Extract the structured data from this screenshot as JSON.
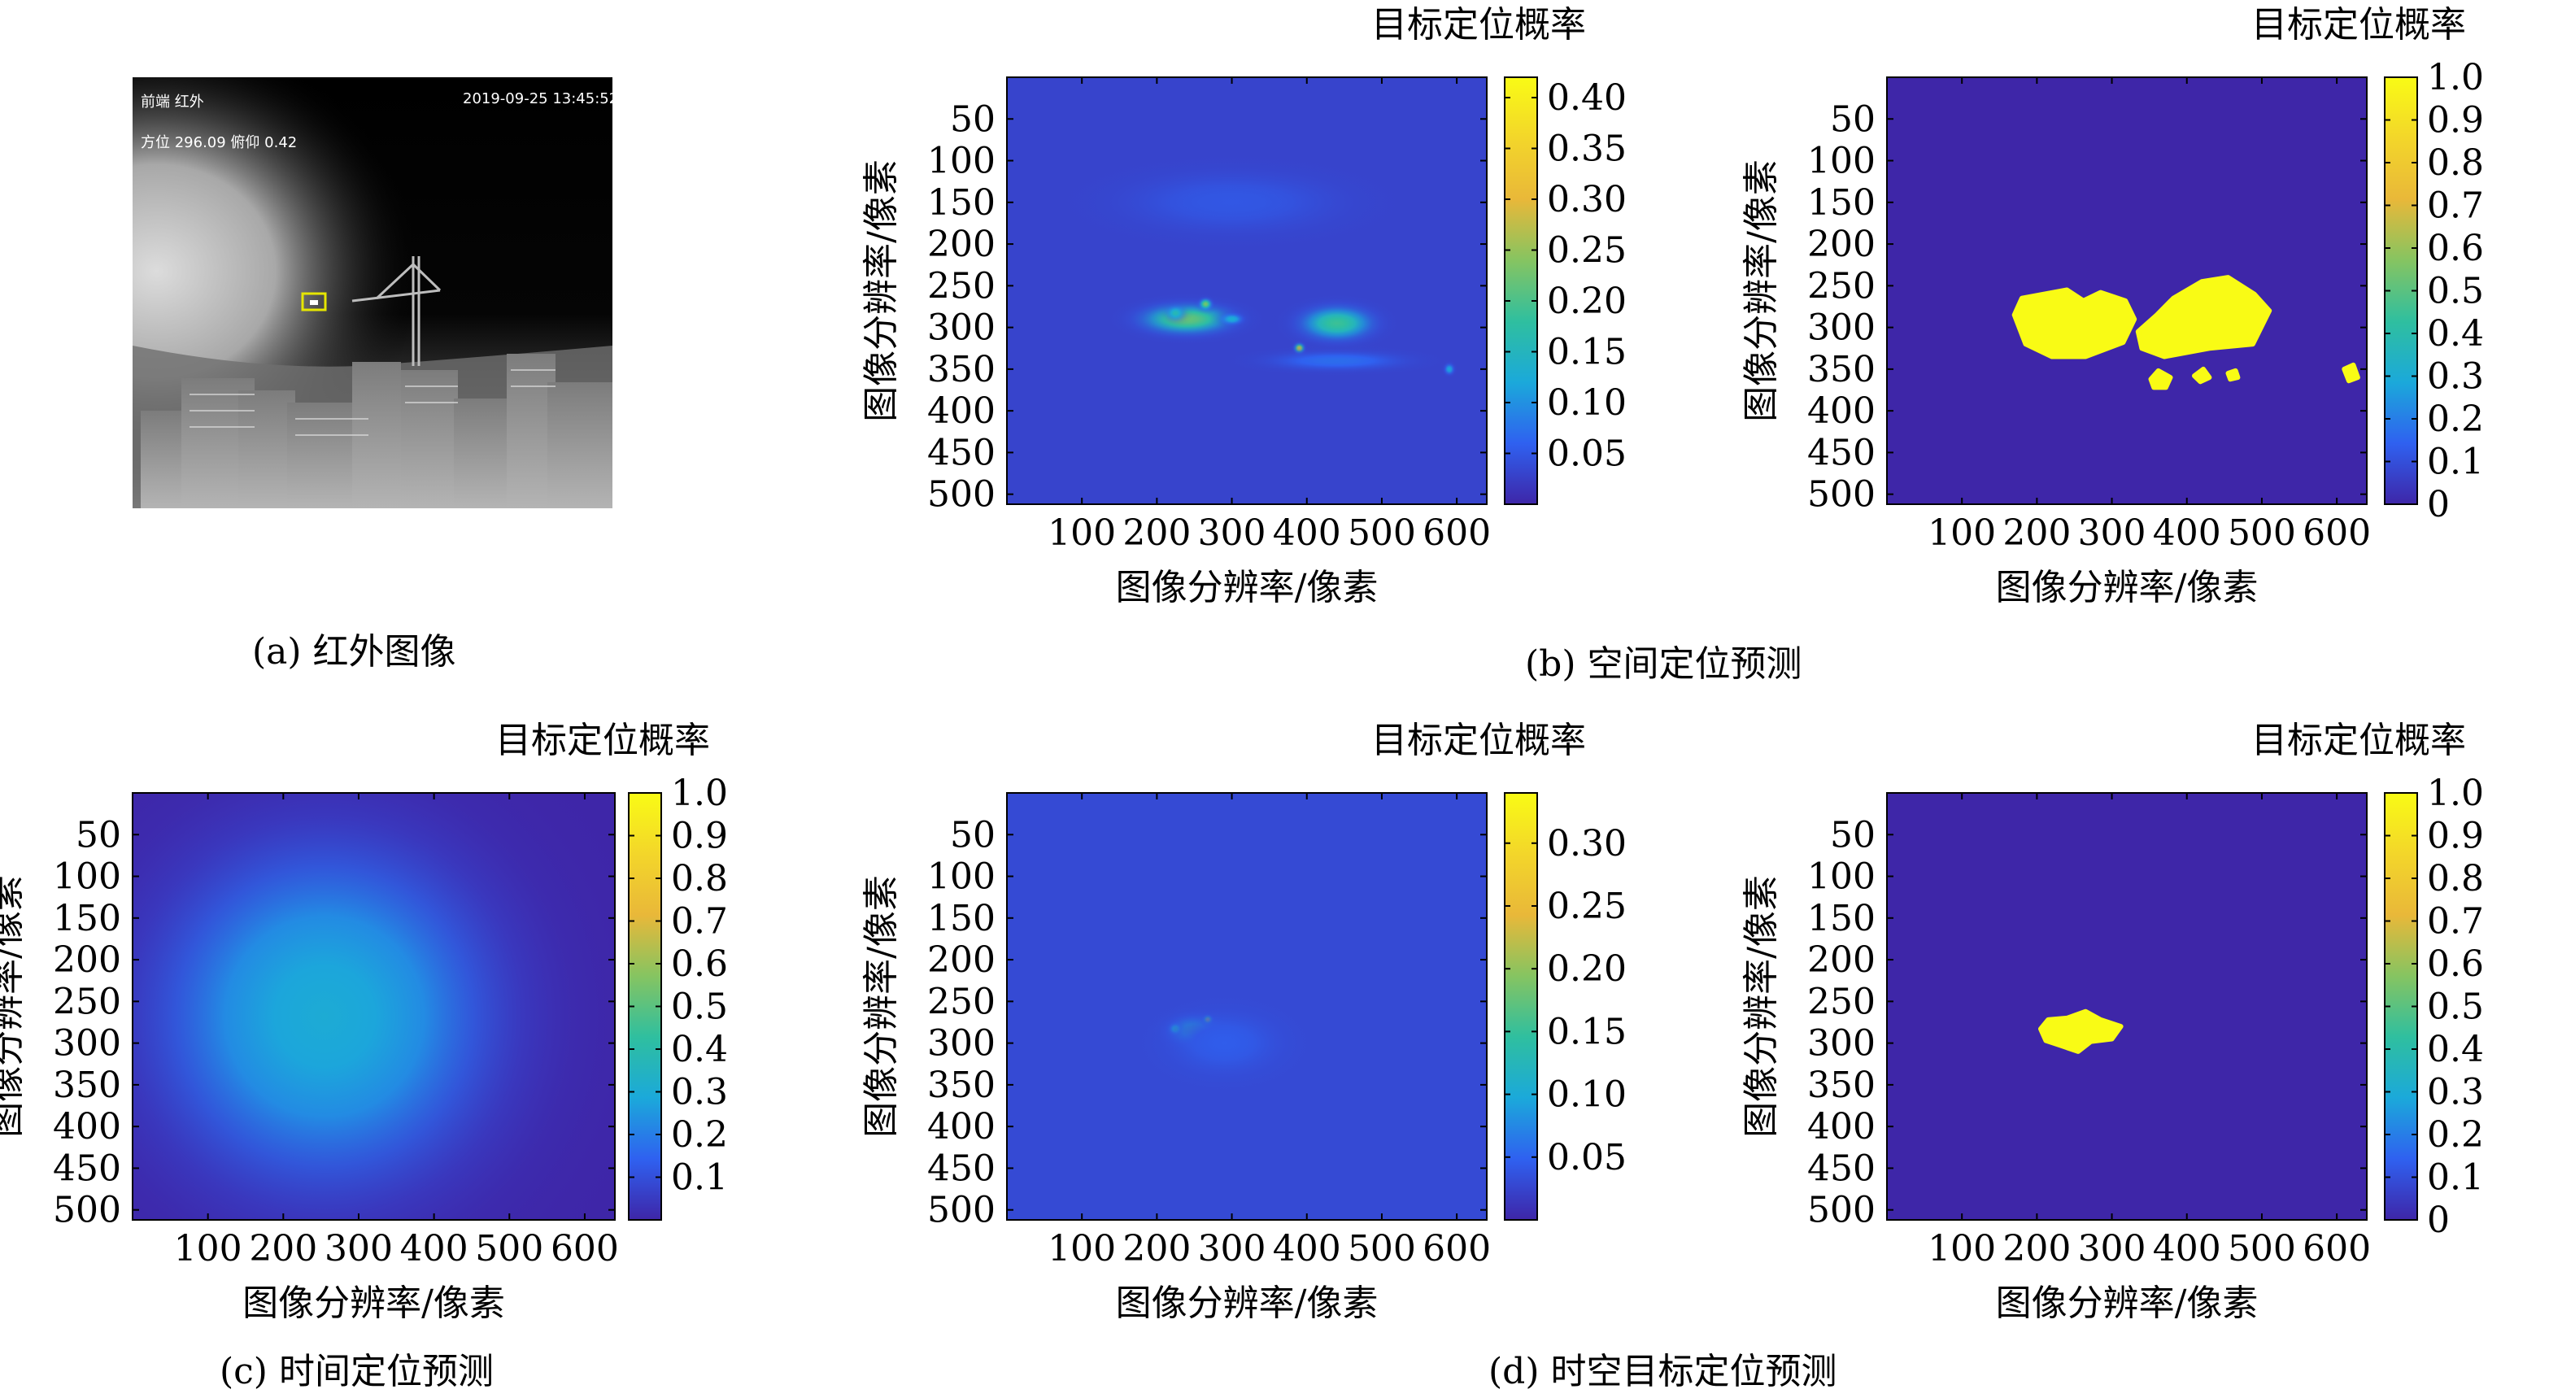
{
  "captions": {
    "a": "(a) 红外图像",
    "b": "(b) 空间定位预测",
    "c": "(c) 时间定位预测",
    "d": "(d) 时空目标定位预测"
  },
  "ir_image": {
    "top_left_label": "前端  红外",
    "timestamp": "2019-09-25  13:45:52",
    "orientation": "方位 296.09  俯仰 0.42",
    "box_color": "#e6e600"
  },
  "colormap": [
    "#3e26a8",
    "#2f61f0",
    "#1ba9da",
    "#2fbf9f",
    "#86c461",
    "#e9b839",
    "#f3d62a",
    "#f9fb15"
  ],
  "chart_data": [
    {
      "id": "b_spatial_probability",
      "type": "heatmap",
      "xlabel": "图像分辨率/像素",
      "ylabel": "图像分辨率/像素",
      "colorbar_label": "目标定位概率",
      "xticks": [
        100,
        200,
        300,
        400,
        500,
        600
      ],
      "yticks": [
        50,
        100,
        150,
        200,
        250,
        300,
        350,
        400,
        450,
        500
      ],
      "xlim": [
        0,
        640
      ],
      "ylim": [
        0,
        512
      ],
      "clim": [
        0,
        0.42
      ],
      "cticks": [
        0.05,
        0.1,
        0.15,
        0.2,
        0.25,
        0.3,
        0.35,
        0.4
      ],
      "ctick_labels": [
        "0.05",
        "0.10",
        "0.15",
        "0.20",
        "0.25",
        "0.30",
        "0.35",
        "0.40"
      ],
      "background": 0.03,
      "blobs": [
        {
          "x": 240,
          "y": 290,
          "sx": 75,
          "sy": 22,
          "v": 0.19
        },
        {
          "x": 440,
          "y": 295,
          "sx": 60,
          "sy": 25,
          "v": 0.16
        },
        {
          "x": 225,
          "y": 283,
          "sx": 14,
          "sy": 10,
          "v": 0.13
        },
        {
          "x": 265,
          "y": 272,
          "sx": 10,
          "sy": 8,
          "v": 0.2
        },
        {
          "x": 300,
          "y": 290,
          "sx": 18,
          "sy": 8,
          "v": 0.1
        },
        {
          "x": 390,
          "y": 325,
          "sx": 8,
          "sy": 7,
          "v": 0.26
        },
        {
          "x": 590,
          "y": 350,
          "sx": 8,
          "sy": 8,
          "v": 0.09
        },
        {
          "x": 440,
          "y": 340,
          "sx": 120,
          "sy": 15,
          "v": 0.04
        },
        {
          "x": 300,
          "y": 150,
          "sx": 200,
          "sy": 50,
          "v": 0.02
        }
      ]
    },
    {
      "id": "b_spatial_mask",
      "type": "heatmap",
      "xlabel": "图像分辨率/像素",
      "ylabel": "图像分辨率/像素",
      "colorbar_label": "目标定位概率",
      "xticks": [
        100,
        200,
        300,
        400,
        500,
        600
      ],
      "yticks": [
        50,
        100,
        150,
        200,
        250,
        300,
        350,
        400,
        450,
        500
      ],
      "xlim": [
        0,
        640
      ],
      "ylim": [
        0,
        512
      ],
      "clim": [
        0,
        1
      ],
      "cticks": [
        0,
        0.1,
        0.2,
        0.3,
        0.4,
        0.5,
        0.6,
        0.7,
        0.8,
        0.9,
        1.0
      ],
      "ctick_labels": [
        "0",
        "0.1",
        "0.2",
        "0.3",
        "0.4",
        "0.5",
        "0.6",
        "0.7",
        "0.8",
        "0.9",
        "1.0"
      ],
      "mask_regions": [
        [
          [
            170,
            285
          ],
          [
            180,
            265
          ],
          [
            210,
            260
          ],
          [
            240,
            255
          ],
          [
            262,
            268
          ],
          [
            285,
            258
          ],
          [
            318,
            268
          ],
          [
            330,
            290
          ],
          [
            315,
            318
          ],
          [
            265,
            335
          ],
          [
            220,
            335
          ],
          [
            185,
            320
          ]
        ],
        [
          [
            335,
            305
          ],
          [
            360,
            285
          ],
          [
            382,
            265
          ],
          [
            420,
            245
          ],
          [
            455,
            240
          ],
          [
            490,
            260
          ],
          [
            510,
            280
          ],
          [
            488,
            320
          ],
          [
            430,
            325
          ],
          [
            370,
            335
          ],
          [
            340,
            325
          ]
        ],
        [
          [
            352,
            362
          ],
          [
            362,
            352
          ],
          [
            378,
            360
          ],
          [
            372,
            372
          ],
          [
            356,
            372
          ]
        ],
        [
          [
            410,
            358
          ],
          [
            422,
            350
          ],
          [
            430,
            360
          ],
          [
            418,
            365
          ]
        ],
        [
          [
            455,
            355
          ],
          [
            465,
            352
          ],
          [
            468,
            360
          ],
          [
            458,
            362
          ]
        ],
        [
          [
            610,
            350
          ],
          [
            622,
            345
          ],
          [
            628,
            360
          ],
          [
            616,
            364
          ]
        ]
      ]
    },
    {
      "id": "c_temporal_probability",
      "type": "heatmap",
      "xlabel": "图像分辨率/像素",
      "ylabel": "图像分辨率/像素",
      "colorbar_label": "目标定位概率",
      "xticks": [
        100,
        200,
        300,
        400,
        500,
        600
      ],
      "yticks": [
        50,
        100,
        150,
        200,
        250,
        300,
        350,
        400,
        450,
        500
      ],
      "xlim": [
        0,
        640
      ],
      "ylim": [
        0,
        512
      ],
      "clim": [
        0,
        1
      ],
      "cticks": [
        0.1,
        0.2,
        0.3,
        0.4,
        0.5,
        0.6,
        0.7,
        0.8,
        0.9,
        1.0
      ],
      "ctick_labels": [
        "0.1",
        "0.2",
        "0.3",
        "0.4",
        "0.5",
        "0.6",
        "0.7",
        "0.8",
        "0.9",
        "1.0"
      ],
      "background": 0.0,
      "blobs": [
        {
          "x": 255,
          "y": 268,
          "sx": 18,
          "sy": 16,
          "v": 0.4
        },
        {
          "x": 255,
          "y": 268,
          "sx": 80,
          "sy": 72,
          "v": 0.26
        },
        {
          "x": 255,
          "y": 268,
          "sx": 330,
          "sy": 300,
          "v": 0.3
        }
      ]
    },
    {
      "id": "d_spatiotemporal_probability",
      "type": "heatmap",
      "xlabel": "图像分辨率/像素",
      "ylabel": "图像分辨率/像素",
      "colorbar_label": "目标定位概率",
      "xticks": [
        100,
        200,
        300,
        400,
        500,
        600
      ],
      "yticks": [
        50,
        100,
        150,
        200,
        250,
        300,
        350,
        400,
        450,
        500
      ],
      "xlim": [
        0,
        640
      ],
      "ylim": [
        0,
        512
      ],
      "clim": [
        0,
        0.34
      ],
      "cticks": [
        0.05,
        0.1,
        0.15,
        0.2,
        0.25,
        0.3
      ],
      "ctick_labels": [
        "0.05",
        "0.10",
        "0.15",
        "0.20",
        "0.25",
        "0.30"
      ],
      "background": 0.03,
      "blobs": [
        {
          "x": 250,
          "y": 285,
          "sx": 40,
          "sy": 20,
          "v": 0.1
        },
        {
          "x": 225,
          "y": 283,
          "sx": 10,
          "sy": 8,
          "v": 0.09
        },
        {
          "x": 268,
          "y": 272,
          "sx": 7,
          "sy": 6,
          "v": 0.19
        },
        {
          "x": 300,
          "y": 290,
          "sx": 15,
          "sy": 6,
          "v": 0.05
        },
        {
          "x": 290,
          "y": 300,
          "sx": 100,
          "sy": 50,
          "v": 0.015
        }
      ]
    },
    {
      "id": "d_spatiotemporal_mask",
      "type": "heatmap",
      "xlabel": "图像分辨率/像素",
      "ylabel": "图像分辨率/像素",
      "colorbar_label": "目标定位概率",
      "xticks": [
        100,
        200,
        300,
        400,
        500,
        600
      ],
      "yticks": [
        50,
        100,
        150,
        200,
        250,
        300,
        350,
        400,
        450,
        500
      ],
      "xlim": [
        0,
        640
      ],
      "ylim": [
        0,
        512
      ],
      "clim": [
        0,
        1
      ],
      "cticks": [
        0,
        0.1,
        0.2,
        0.3,
        0.4,
        0.5,
        0.6,
        0.7,
        0.8,
        0.9,
        1.0
      ],
      "ctick_labels": [
        "0",
        "0.1",
        "0.2",
        "0.3",
        "0.4",
        "0.5",
        "0.6",
        "0.7",
        "0.8",
        "0.9",
        "1.0"
      ],
      "mask_regions": [
        [
          [
            205,
            283
          ],
          [
            215,
            272
          ],
          [
            240,
            270
          ],
          [
            265,
            262
          ],
          [
            285,
            272
          ],
          [
            312,
            280
          ],
          [
            300,
            295
          ],
          [
            272,
            298
          ],
          [
            255,
            310
          ],
          [
            232,
            303
          ],
          [
            212,
            297
          ]
        ]
      ]
    }
  ]
}
